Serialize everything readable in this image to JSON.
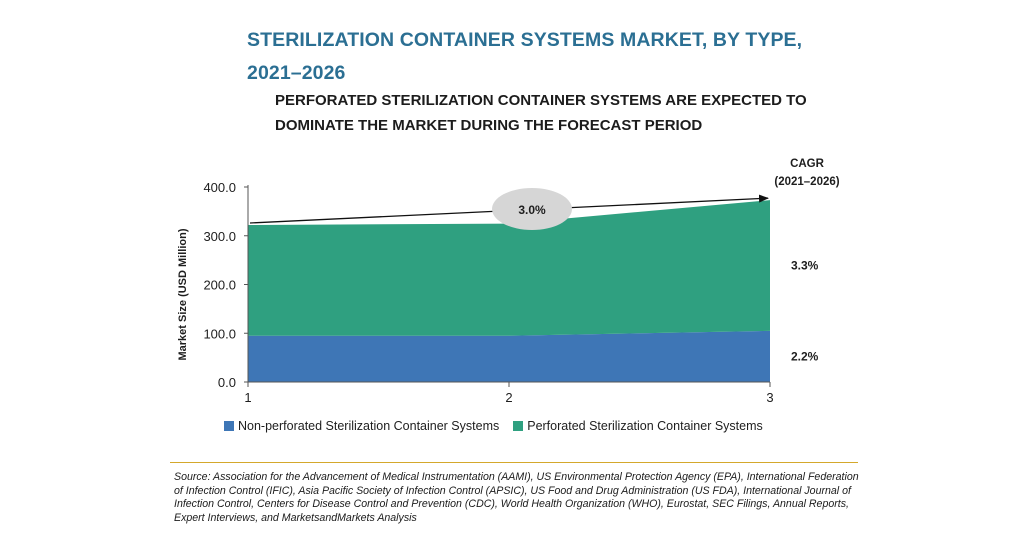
{
  "title": "STERILIZATION CONTAINER SYSTEMS MARKET, BY TYPE, 2021–2026",
  "subtitle": "PERFORATED STERILIZATION CONTAINER SYSTEMS ARE EXPECTED TO DOMINATE THE MARKET DURING THE FORECAST PERIOD",
  "colors": {
    "title": "#2b6f93",
    "non_perforated": "#3e76b6",
    "perforated": "#2fa080",
    "bubble": "#d6d6d6",
    "rule": "#d4a82c"
  },
  "chart_data": {
    "type": "area",
    "stacked": true,
    "x": [
      1,
      2,
      3
    ],
    "ylabel": "Market Size (USD Million)",
    "ylim": [
      0,
      400
    ],
    "yticks": [
      "0.0",
      "100.0",
      "200.0",
      "300.0",
      "400.0"
    ],
    "xticks": [
      "1",
      "2",
      "3"
    ],
    "series": [
      {
        "name": "Non-perforated Sterilization Container Systems",
        "values": [
          95,
          95,
          105
        ],
        "cagr": "2.2%"
      },
      {
        "name": "Perforated Sterilization Container Systems",
        "values": [
          227,
          230,
          268
        ],
        "cagr": "3.3%"
      }
    ],
    "cagr_header_line1": "CAGR",
    "cagr_header_line2": "(2021–2026)",
    "total_cagr": "3.0%",
    "legend_position": "bottom",
    "grid": false
  },
  "source": "Source: Association for the Advancement of Medical Instrumentation (AAMI), US Environmental Protection Agency (EPA), International Federation of Infection Control (IFIC), Asia Pacific Society of Infection Control (APSIC), US Food and Drug Administration (US FDA), International Journal of Infection Control, Centers for Disease Control and Prevention (CDC), World Health Organization (WHO), Eurostat, SEC Filings, Annual Reports, Expert Interviews, and MarketsandMarkets Analysis"
}
